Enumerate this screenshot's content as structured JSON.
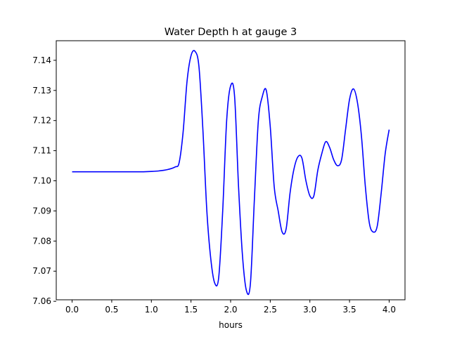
{
  "chart_data": {
    "type": "line",
    "title": "Water Depth h at gauge 3",
    "xlabel": "hours",
    "ylabel": "",
    "xlim": [
      -0.2,
      4.2
    ],
    "ylim": [
      7.0605,
      7.1465
    ],
    "xticks": [
      0.0,
      0.5,
      1.0,
      1.5,
      2.0,
      2.5,
      3.0,
      3.5,
      4.0
    ],
    "xtick_labels": [
      "0.0",
      "0.5",
      "1.0",
      "1.5",
      "2.0",
      "2.5",
      "3.0",
      "3.5",
      "4.0"
    ],
    "yticks": [
      7.06,
      7.07,
      7.08,
      7.09,
      7.1,
      7.11,
      7.12,
      7.13,
      7.14
    ],
    "ytick_labels": [
      "7.06",
      "7.07",
      "7.08",
      "7.09",
      "7.10",
      "7.11",
      "7.12",
      "7.13",
      "7.14"
    ],
    "grid": false,
    "series": [
      {
        "color": "#0000ff",
        "x": [
          0.0,
          0.2,
          0.4,
          0.6,
          0.8,
          0.9,
          1.0,
          1.1,
          1.2,
          1.3,
          1.35,
          1.4,
          1.45,
          1.5,
          1.55,
          1.6,
          1.65,
          1.7,
          1.75,
          1.8,
          1.85,
          1.9,
          1.95,
          2.0,
          2.05,
          2.1,
          2.15,
          2.2,
          2.25,
          2.3,
          2.35,
          2.4,
          2.45,
          2.5,
          2.55,
          2.6,
          2.65,
          2.7,
          2.75,
          2.8,
          2.85,
          2.9,
          2.95,
          3.0,
          3.05,
          3.1,
          3.15,
          3.2,
          3.25,
          3.3,
          3.35,
          3.4,
          3.45,
          3.5,
          3.55,
          3.6,
          3.65,
          3.7,
          3.75,
          3.8,
          3.85,
          3.9,
          3.95,
          4.0
        ],
        "y": [
          7.103,
          7.103,
          7.103,
          7.103,
          7.103,
          7.103,
          7.1031,
          7.1033,
          7.1037,
          7.1046,
          7.106,
          7.116,
          7.133,
          7.1415,
          7.143,
          7.138,
          7.117,
          7.09,
          7.074,
          7.066,
          7.068,
          7.09,
          7.12,
          7.1315,
          7.128,
          7.098,
          7.075,
          7.0635,
          7.066,
          7.094,
          7.12,
          7.128,
          7.13,
          7.118,
          7.098,
          7.09,
          7.083,
          7.084,
          7.096,
          7.104,
          7.108,
          7.1075,
          7.1,
          7.095,
          7.095,
          7.1035,
          7.109,
          7.113,
          7.111,
          7.107,
          7.105,
          7.107,
          7.117,
          7.127,
          7.1305,
          7.126,
          7.115,
          7.098,
          7.086,
          7.083,
          7.085,
          7.096,
          7.109,
          7.117
        ]
      }
    ]
  }
}
